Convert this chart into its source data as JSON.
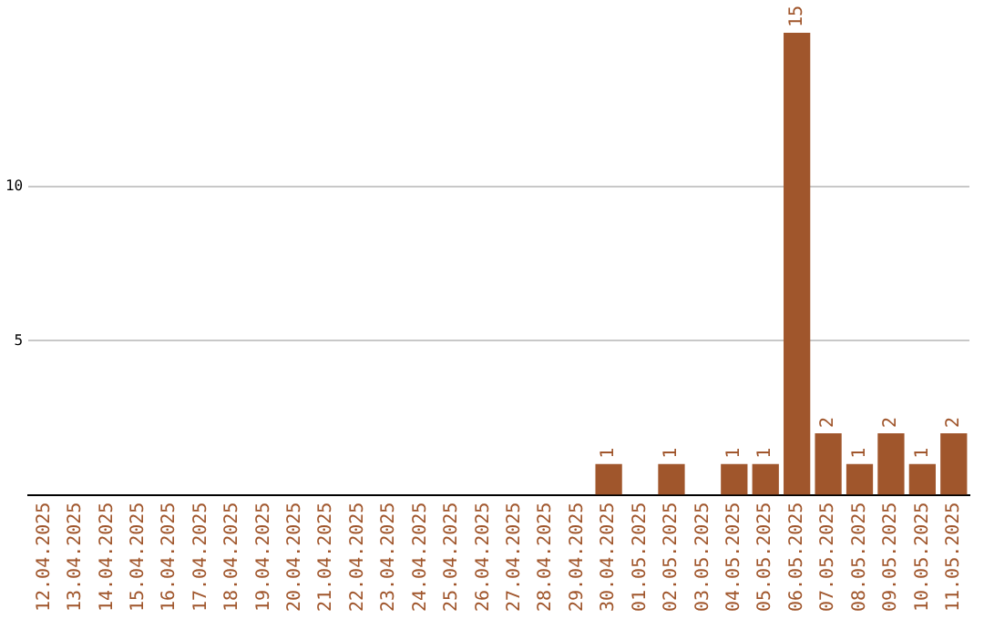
{
  "chart_data": {
    "type": "bar",
    "categories": [
      "12.04.2025",
      "13.04.2025",
      "14.04.2025",
      "15.04.2025",
      "16.04.2025",
      "17.04.2025",
      "18.04.2025",
      "19.04.2025",
      "20.04.2025",
      "21.04.2025",
      "22.04.2025",
      "23.04.2025",
      "24.04.2025",
      "25.04.2025",
      "26.04.2025",
      "27.04.2025",
      "28.04.2025",
      "29.04.2025",
      "30.04.2025",
      "01.05.2025",
      "02.05.2025",
      "03.05.2025",
      "04.05.2025",
      "05.05.2025",
      "06.05.2025",
      "07.05.2025",
      "08.05.2025",
      "09.05.2025",
      "10.05.2025",
      "11.05.2025"
    ],
    "values": [
      0,
      0,
      0,
      0,
      0,
      0,
      0,
      0,
      0,
      0,
      0,
      0,
      0,
      0,
      0,
      0,
      0,
      0,
      1,
      0,
      1,
      0,
      1,
      1,
      15,
      2,
      1,
      2,
      1,
      2
    ],
    "value_labels": [
      null,
      null,
      null,
      null,
      null,
      null,
      null,
      null,
      null,
      null,
      null,
      null,
      null,
      null,
      null,
      null,
      null,
      null,
      "1",
      null,
      "1",
      null,
      "1",
      "1",
      "15",
      "2",
      "1",
      "2",
      "1",
      "2"
    ],
    "color": "#a0562c",
    "ylim": [
      0,
      15
    ],
    "yticks": [
      5,
      10
    ],
    "grid": "y",
    "legend": false
  }
}
